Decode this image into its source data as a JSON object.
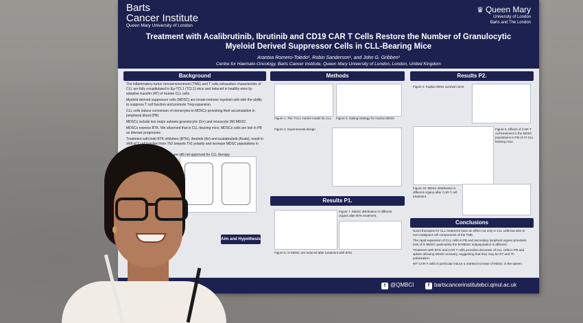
{
  "poster": {
    "institution_left": "Barts",
    "institution_left_line2": "Cancer Institute",
    "institution_left_sub": "Queen Mary University of London",
    "institution_right": "Queen Mary",
    "institution_right_sub1": "University of London",
    "institution_right_sub2": "Barts and The London",
    "title": "Treatment with Acalibrutinib, Ibrutinib and CD19 CAR T Cells Restore the Number of Granulocytic Myeloid Derived Suppressor Cells in CLL-Bearing Mice",
    "authors": "Arantxa Romero-Toledo¹, Robin Sanderson¹, and John G. Gribben¹",
    "affiliation": "Centre for Haemato-Oncology, Barts Cancer Institute, Queen Mary University of London, London, United Kingdom",
    "sections": {
      "background": "Background",
      "methods": "Methods",
      "results_p1": "Results P1.",
      "results_p2": "Results P2.",
      "aim": "Aim and Hypothesis",
      "conclusions": "Conclusions"
    },
    "background_points": [
      "The inflammatory tumor microenvironment (TME) and T cells exhaustion characteristic of CLL are fully recapitulated in Eμ-TCL1 (TCL1) mice and induced in healthy mice by adoptive transfer (AT) of murine CLL cells",
      "Myeloid-derived suppressor cells (MDSC) are innate immune myeloid cells with the ability to suppress T cell function and promote Treg expansion.",
      "CLL cells induce conversion of monocytes to MDSCs provoking their accumulation in peripheral blood (PB)",
      "MDSCs include two major subsets granulocytic (G+) and monocytic (M) MDSC.",
      "MDSCs express BTK. We observed that in CLL-bearing mice, MDSCs cells are lost in PB as disease progresses",
      "Treatment with both BTK inhibitors (BTKi), ibrutinib (Ibr) and acalabrutinib (Acala), result in shift of T cell function from Th2 towards Th1 polarity and increase MDSC populations in vivo",
      "Anti-murine CD19 CAR T cells are still not approved for CLL therapy."
    ],
    "methods_caption": "Figure 1. The TCL1 murine model for CLL",
    "methods_caption2": "Figure 2. Gating strategy for murine MDSC",
    "figure3_caption": "Figure 3. Experimental design.",
    "results_p1_caption": "Figure 7. MDSC distribution in different organs after BTK treatment.",
    "results_p1_caption2": "Figure 6. G-MDSC are reduced after treatment with BTKi.",
    "results_p2_caption": "Figure 4. Kaplan Meier survival curve.",
    "results_p2_caption2": "Figure 5. Effects of CAR-T cell treatment in the MDSC populations in PB of AT CLL bearing mice.",
    "results_p2_caption3": "Figure 10. MDSC distribution in different organs after CAR-T cell treatment.",
    "conclusions_points": [
      "Novel therapies for CLL treatment have an effect not only in CLL cells but also in non-malignant cell components of the TME.",
      "The rapid expansion of CLL cells in PB and secondary lymphoid organs provokes loss of G-MDSC particularly the M-MDSC subpopulation is affected.",
      "Treatment with BTKi and CAR T cells provokes decrease of CLL cells in PB and spleen allowing MDSC recovery, suggesting that they may be GT and Th polarisation.",
      "WT CAR-T cells in particular induce a marked increase of MDSC in the spleen."
    ],
    "twitter": "@QMBCI",
    "facebook": "bartscancerinstitute",
    "website": "bci.qmul.ac.uk"
  },
  "colors": {
    "navy": "#1d2150",
    "poster_bg": "#e7e8ec",
    "board": "#8d8b86"
  }
}
